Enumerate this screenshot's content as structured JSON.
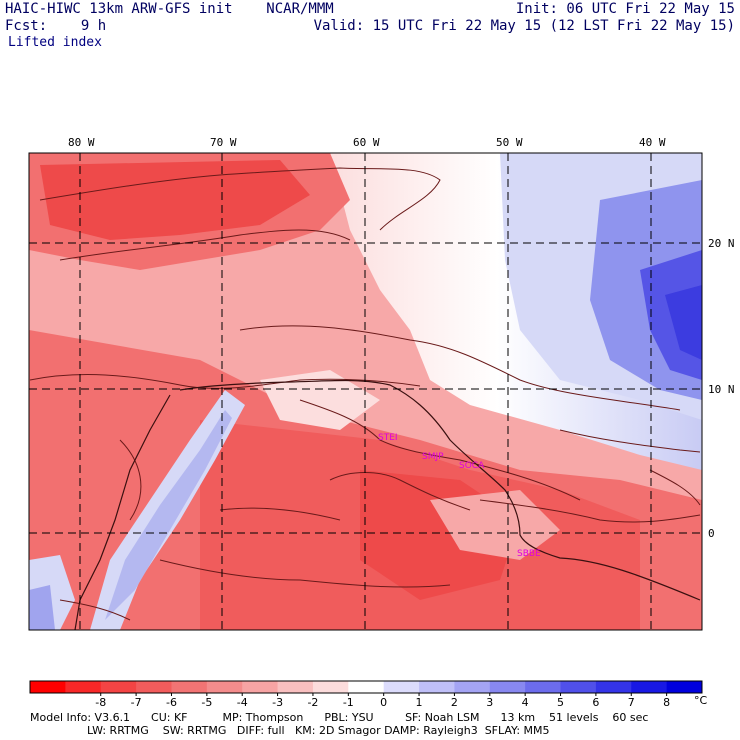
{
  "header": {
    "title": "HAIC-HIWC 13km ARW-GFS init    NCAR/MMM",
    "init": "Init: 06 UTC Fri 22 May 15",
    "fcst": "Fcst:    9 h",
    "valid": "Valid: 15 UTC Fri 22 May 15 (12 LST Fri 22 May 15)",
    "field": "Lifted index"
  },
  "map": {
    "lon_labels": [
      "80 W",
      "70 W",
      "60 W",
      "50 W",
      "40 W"
    ],
    "lat_labels": [
      "20 N",
      "10 N",
      "0"
    ],
    "stations": [
      "STEI",
      "SMJP",
      "SOCA",
      "SBBE"
    ],
    "colors": {
      "very_warm": "#ee4040",
      "warm": "#f27070",
      "mild": "#f7a8a8",
      "light": "#fcdede",
      "neutral": "#ffffff",
      "cool": "#d6d9f7",
      "cold": "#8f94ee",
      "very_cold": "#3c3ce0",
      "contour": "#6a1a1a"
    }
  },
  "colorbar": {
    "labels": [
      "-8",
      "-7",
      "-6",
      "-5",
      "-4",
      "-3",
      "-2",
      "-1",
      "0",
      "1",
      "2",
      "3",
      "4",
      "5",
      "6",
      "7",
      "8"
    ],
    "unit": "°C",
    "colors": [
      "#ff0000",
      "#f82828",
      "#f44444",
      "#f25c5c",
      "#f27474",
      "#f48c8c",
      "#f7a4a4",
      "#f9c0c0",
      "#fcdcdc",
      "#ffffff",
      "#dcdcfc",
      "#c0c0f8",
      "#a4a4f4",
      "#8888f0",
      "#6c6cec",
      "#5050ea",
      "#3434e8",
      "#1818e4",
      "#0000dd"
    ]
  },
  "model_info": {
    "line1": "Model Info: V3.6.1      CU: KF          MP: Thompson      PBL: YSU         SF: Noah LSM      13 km    51 levels    60 sec",
    "line2": "LW: RRTMG    SW: RRTMG   DIFF: full   KM: 2D Smagor DAMP: Rayleigh3  SFLAY: MM5"
  }
}
